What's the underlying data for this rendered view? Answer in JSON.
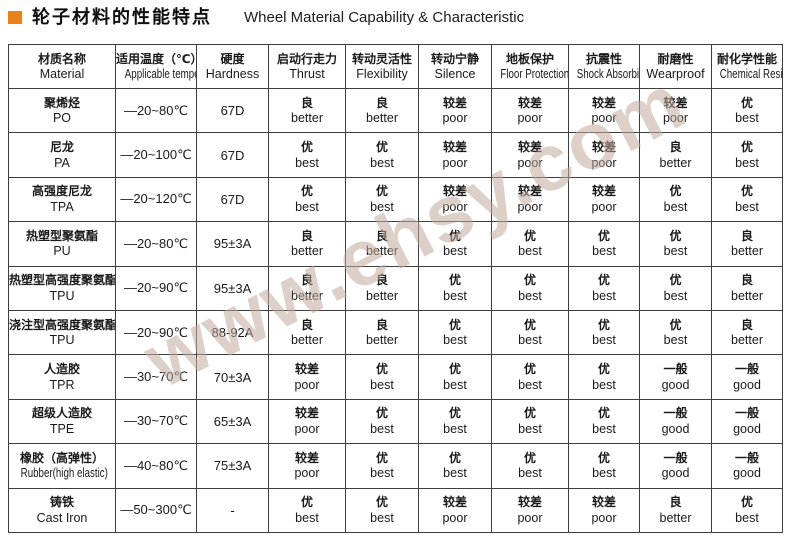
{
  "page": {
    "title_zh": "轮子材料的性能特点",
    "title_en": "Wheel Material Capability & Characteristic",
    "accent_color": "#e8821b",
    "watermark": "www.ehsy.com"
  },
  "table": {
    "headers": [
      {
        "zh": "材质名称",
        "en": "Material",
        "condensed": false
      },
      {
        "zh": "适用温度（℃）",
        "en": "Applicable temperature",
        "condensed": true
      },
      {
        "zh": "硬度",
        "en": "Hardness",
        "condensed": false
      },
      {
        "zh": "启动行走力",
        "en": "Thrust",
        "condensed": false
      },
      {
        "zh": "转动灵活性",
        "en": "Flexibility",
        "condensed": false
      },
      {
        "zh": "转动宁静",
        "en": "Silence",
        "condensed": false
      },
      {
        "zh": "地板保护",
        "en": "Floor Protection",
        "condensed": true
      },
      {
        "zh": "抗震性",
        "en": "Shock Absorbing",
        "condensed": true
      },
      {
        "zh": "耐磨性",
        "en": "Wearproof",
        "condensed": false
      },
      {
        "zh": "耐化学性能",
        "en": "Chemical Resistance",
        "condensed": true
      }
    ],
    "rows": [
      {
        "material": {
          "zh": "聚烯烃",
          "en": "PO"
        },
        "temperature": "—20~80℃",
        "hardness": "67D",
        "ratings": [
          [
            "良",
            "better"
          ],
          [
            "良",
            "better"
          ],
          [
            "较差",
            "poor"
          ],
          [
            "较差",
            "poor"
          ],
          [
            "较差",
            "poor"
          ],
          [
            "较差",
            "poor"
          ],
          [
            "优",
            "best"
          ]
        ]
      },
      {
        "material": {
          "zh": "尼龙",
          "en": "PA"
        },
        "temperature": "—20~100℃",
        "hardness": "67D",
        "ratings": [
          [
            "优",
            "best"
          ],
          [
            "优",
            "best"
          ],
          [
            "较差",
            "poor"
          ],
          [
            "较差",
            "poor"
          ],
          [
            "较差",
            "poor"
          ],
          [
            "良",
            "better"
          ],
          [
            "优",
            "best"
          ]
        ]
      },
      {
        "material": {
          "zh": "高强度尼龙",
          "en": "TPA"
        },
        "temperature": "—20~120℃",
        "hardness": "67D",
        "ratings": [
          [
            "优",
            "best"
          ],
          [
            "优",
            "best"
          ],
          [
            "较差",
            "poor"
          ],
          [
            "较差",
            "poor"
          ],
          [
            "较差",
            "poor"
          ],
          [
            "优",
            "best"
          ],
          [
            "优",
            "best"
          ]
        ]
      },
      {
        "material": {
          "zh": "热塑型聚氨酯",
          "en": "PU"
        },
        "temperature": "—20~80℃",
        "hardness": "95±3A",
        "ratings": [
          [
            "良",
            "better"
          ],
          [
            "良",
            "better"
          ],
          [
            "优",
            "best"
          ],
          [
            "优",
            "best"
          ],
          [
            "优",
            "best"
          ],
          [
            "优",
            "best"
          ],
          [
            "良",
            "better"
          ]
        ]
      },
      {
        "material": {
          "zh": "热塑型高强度聚氨酯",
          "en": "TPU"
        },
        "temperature": "—20~90℃",
        "hardness": "95±3A",
        "ratings": [
          [
            "良",
            "better"
          ],
          [
            "良",
            "better"
          ],
          [
            "优",
            "best"
          ],
          [
            "优",
            "best"
          ],
          [
            "优",
            "best"
          ],
          [
            "优",
            "best"
          ],
          [
            "良",
            "better"
          ]
        ]
      },
      {
        "material": {
          "zh": "浇注型高强度聚氨酯",
          "en": "TPU"
        },
        "temperature": "—20~90℃",
        "hardness": "88-92A",
        "ratings": [
          [
            "良",
            "better"
          ],
          [
            "良",
            "better"
          ],
          [
            "优",
            "best"
          ],
          [
            "优",
            "best"
          ],
          [
            "优",
            "best"
          ],
          [
            "优",
            "best"
          ],
          [
            "良",
            "better"
          ]
        ]
      },
      {
        "material": {
          "zh": "人造胶",
          "en": "TPR"
        },
        "temperature": "—30~70℃",
        "hardness": "70±3A",
        "ratings": [
          [
            "较差",
            "poor"
          ],
          [
            "优",
            "best"
          ],
          [
            "优",
            "best"
          ],
          [
            "优",
            "best"
          ],
          [
            "优",
            "best"
          ],
          [
            "一般",
            "good"
          ],
          [
            "一般",
            "good"
          ]
        ]
      },
      {
        "material": {
          "zh": "超级人造胶",
          "en": "TPE"
        },
        "temperature": "—30~70℃",
        "hardness": "65±3A",
        "ratings": [
          [
            "较差",
            "poor"
          ],
          [
            "优",
            "best"
          ],
          [
            "优",
            "best"
          ],
          [
            "优",
            "best"
          ],
          [
            "优",
            "best"
          ],
          [
            "一般",
            "good"
          ],
          [
            "一般",
            "good"
          ]
        ]
      },
      {
        "material": {
          "zh": "橡胶（高弹性）",
          "en": "Rubber(high elastic)"
        },
        "temperature": "—40~80℃",
        "hardness": "75±3A",
        "ratings": [
          [
            "较差",
            "poor"
          ],
          [
            "优",
            "best"
          ],
          [
            "优",
            "best"
          ],
          [
            "优",
            "best"
          ],
          [
            "优",
            "best"
          ],
          [
            "一般",
            "good"
          ],
          [
            "一般",
            "good"
          ]
        ]
      },
      {
        "material": {
          "zh": "铸铁",
          "en": "Cast Iron"
        },
        "temperature": "—50~300℃",
        "hardness": "-",
        "ratings": [
          [
            "优",
            "best"
          ],
          [
            "优",
            "best"
          ],
          [
            "较差",
            "poor"
          ],
          [
            "较差",
            "poor"
          ],
          [
            "较差",
            "poor"
          ],
          [
            "良",
            "better"
          ],
          [
            "优",
            "best"
          ]
        ]
      }
    ]
  }
}
